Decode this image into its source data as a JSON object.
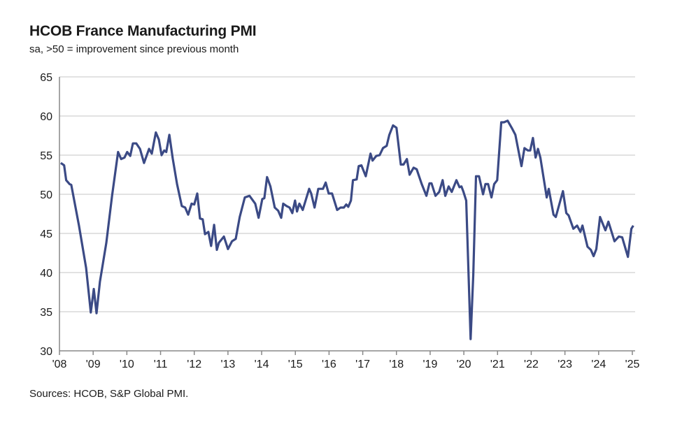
{
  "chart_data": {
    "type": "line",
    "title": "HCOB France Manufacturing PMI",
    "subtitle": "sa, >50 = improvement since previous month",
    "source": "Sources: HCOB, S&P Global PMI.",
    "xlabel": "",
    "ylabel": "",
    "ylim": [
      30,
      65
    ],
    "yticks": [
      30,
      35,
      40,
      45,
      50,
      55,
      60,
      65
    ],
    "xlim": [
      2008,
      2025.1
    ],
    "xticks": [
      2008,
      2009,
      2010,
      2011,
      2012,
      2013,
      2014,
      2015,
      2016,
      2017,
      2018,
      2019,
      2020,
      2021,
      2022,
      2023,
      2024,
      2025
    ],
    "xtick_labels": [
      "'08",
      "'09",
      "'10",
      "'11",
      "'12",
      "'13",
      "'14",
      "'15",
      "'16",
      "'17",
      "'18",
      "'19",
      "'20",
      "'21",
      "'22",
      "'23",
      "'24",
      "'25"
    ],
    "grid": "horizontal",
    "line_color": "#3b4a85",
    "series": [
      {
        "points": [
          [
            2008.04,
            54.0
          ],
          [
            2008.14,
            53.7
          ],
          [
            2008.2,
            51.8
          ],
          [
            2008.3,
            51.3
          ],
          [
            2008.35,
            51.2
          ],
          [
            2008.58,
            46.0
          ],
          [
            2008.79,
            40.6
          ],
          [
            2008.93,
            34.9
          ],
          [
            2009.02,
            37.9
          ],
          [
            2009.1,
            34.8
          ],
          [
            2009.2,
            38.8
          ],
          [
            2009.39,
            43.8
          ],
          [
            2009.56,
            49.8
          ],
          [
            2009.74,
            55.4
          ],
          [
            2009.83,
            54.5
          ],
          [
            2009.93,
            54.7
          ],
          [
            2010.01,
            55.4
          ],
          [
            2010.1,
            54.9
          ],
          [
            2010.18,
            56.5
          ],
          [
            2010.28,
            56.5
          ],
          [
            2010.39,
            55.8
          ],
          [
            2010.51,
            54.0
          ],
          [
            2010.66,
            55.8
          ],
          [
            2010.74,
            55.2
          ],
          [
            2010.86,
            57.9
          ],
          [
            2010.95,
            57.0
          ],
          [
            2011.03,
            55.0
          ],
          [
            2011.11,
            55.6
          ],
          [
            2011.17,
            55.4
          ],
          [
            2011.26,
            57.6
          ],
          [
            2011.36,
            54.6
          ],
          [
            2011.49,
            51.3
          ],
          [
            2011.63,
            48.5
          ],
          [
            2011.73,
            48.3
          ],
          [
            2011.82,
            47.4
          ],
          [
            2011.92,
            48.8
          ],
          [
            2012.0,
            48.7
          ],
          [
            2012.09,
            50.1
          ],
          [
            2012.17,
            46.9
          ],
          [
            2012.25,
            46.8
          ],
          [
            2012.32,
            44.9
          ],
          [
            2012.42,
            45.2
          ],
          [
            2012.5,
            43.4
          ],
          [
            2012.59,
            46.1
          ],
          [
            2012.67,
            42.9
          ],
          [
            2012.73,
            43.8
          ],
          [
            2012.88,
            44.6
          ],
          [
            2013.0,
            43.0
          ],
          [
            2013.12,
            44.0
          ],
          [
            2013.23,
            44.3
          ],
          [
            2013.35,
            47.1
          ],
          [
            2013.5,
            49.6
          ],
          [
            2013.64,
            49.8
          ],
          [
            2013.81,
            48.8
          ],
          [
            2013.91,
            47.0
          ],
          [
            2014.02,
            49.4
          ],
          [
            2014.08,
            49.5
          ],
          [
            2014.16,
            52.2
          ],
          [
            2014.26,
            51.0
          ],
          [
            2014.39,
            48.3
          ],
          [
            2014.49,
            47.9
          ],
          [
            2014.58,
            47.0
          ],
          [
            2014.64,
            48.8
          ],
          [
            2014.74,
            48.5
          ],
          [
            2014.83,
            48.3
          ],
          [
            2014.91,
            47.6
          ],
          [
            2014.99,
            49.2
          ],
          [
            2015.05,
            47.8
          ],
          [
            2015.12,
            48.8
          ],
          [
            2015.22,
            48.0
          ],
          [
            2015.41,
            50.7
          ],
          [
            2015.47,
            50.1
          ],
          [
            2015.57,
            48.3
          ],
          [
            2015.68,
            50.7
          ],
          [
            2015.82,
            50.7
          ],
          [
            2015.9,
            51.5
          ],
          [
            2015.99,
            50.1
          ],
          [
            2016.09,
            50.1
          ],
          [
            2016.24,
            48.0
          ],
          [
            2016.34,
            48.3
          ],
          [
            2016.44,
            48.3
          ],
          [
            2016.51,
            48.7
          ],
          [
            2016.57,
            48.4
          ],
          [
            2016.65,
            49.2
          ],
          [
            2016.71,
            51.8
          ],
          [
            2016.82,
            51.9
          ],
          [
            2016.88,
            53.6
          ],
          [
            2016.96,
            53.7
          ],
          [
            2017.09,
            52.3
          ],
          [
            2017.23,
            55.2
          ],
          [
            2017.29,
            54.3
          ],
          [
            2017.4,
            54.9
          ],
          [
            2017.5,
            55.0
          ],
          [
            2017.6,
            55.9
          ],
          [
            2017.71,
            56.2
          ],
          [
            2017.79,
            57.6
          ],
          [
            2017.9,
            58.8
          ],
          [
            2018.0,
            58.5
          ],
          [
            2018.13,
            53.8
          ],
          [
            2018.21,
            53.8
          ],
          [
            2018.31,
            54.5
          ],
          [
            2018.39,
            52.5
          ],
          [
            2018.51,
            53.4
          ],
          [
            2018.6,
            53.2
          ],
          [
            2018.75,
            51.3
          ],
          [
            2018.89,
            49.8
          ],
          [
            2018.98,
            51.4
          ],
          [
            2019.04,
            51.4
          ],
          [
            2019.16,
            49.8
          ],
          [
            2019.27,
            50.3
          ],
          [
            2019.37,
            51.8
          ],
          [
            2019.45,
            49.8
          ],
          [
            2019.55,
            51.0
          ],
          [
            2019.64,
            50.3
          ],
          [
            2019.78,
            51.8
          ],
          [
            2019.87,
            50.9
          ],
          [
            2019.93,
            51.0
          ],
          [
            2019.99,
            50.3
          ],
          [
            2020.07,
            49.2
          ],
          [
            2020.2,
            31.5
          ],
          [
            2020.28,
            39.7
          ],
          [
            2020.36,
            52.3
          ],
          [
            2020.45,
            52.3
          ],
          [
            2020.57,
            50.0
          ],
          [
            2020.64,
            51.3
          ],
          [
            2020.72,
            51.3
          ],
          [
            2020.82,
            49.6
          ],
          [
            2020.9,
            51.3
          ],
          [
            2020.99,
            51.8
          ],
          [
            2021.11,
            59.2
          ],
          [
            2021.19,
            59.2
          ],
          [
            2021.3,
            59.4
          ],
          [
            2021.42,
            58.5
          ],
          [
            2021.53,
            57.6
          ],
          [
            2021.71,
            53.6
          ],
          [
            2021.8,
            55.9
          ],
          [
            2021.9,
            55.6
          ],
          [
            2021.97,
            55.6
          ],
          [
            2022.05,
            57.2
          ],
          [
            2022.13,
            54.7
          ],
          [
            2022.2,
            55.8
          ],
          [
            2022.27,
            54.7
          ],
          [
            2022.46,
            49.6
          ],
          [
            2022.52,
            50.7
          ],
          [
            2022.66,
            47.4
          ],
          [
            2022.73,
            47.1
          ],
          [
            2022.94,
            50.4
          ],
          [
            2023.04,
            47.6
          ],
          [
            2023.11,
            47.3
          ],
          [
            2023.25,
            45.6
          ],
          [
            2023.36,
            46.0
          ],
          [
            2023.46,
            45.2
          ],
          [
            2023.52,
            46.0
          ],
          [
            2023.67,
            43.3
          ],
          [
            2023.77,
            42.9
          ],
          [
            2023.85,
            42.1
          ],
          [
            2023.93,
            43.0
          ],
          [
            2024.04,
            47.1
          ],
          [
            2024.2,
            45.4
          ],
          [
            2024.29,
            46.5
          ],
          [
            2024.47,
            44.0
          ],
          [
            2024.6,
            44.6
          ],
          [
            2024.7,
            44.5
          ],
          [
            2024.87,
            42.0
          ],
          [
            2024.97,
            45.6
          ],
          [
            2025.03,
            46.0
          ]
        ]
      }
    ]
  }
}
